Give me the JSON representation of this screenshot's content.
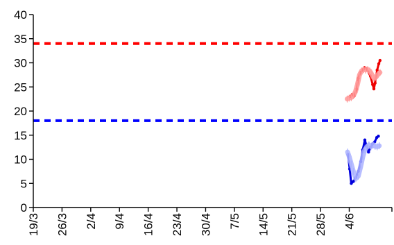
{
  "chart_data": {
    "type": "line",
    "title": "",
    "xlabel": "",
    "ylabel": "",
    "ylim": [
      0,
      40
    ],
    "yticks": [
      0,
      5,
      10,
      15,
      20,
      25,
      30,
      35,
      40
    ],
    "x_tick_labels": [
      "19/3",
      "26/3",
      "2/4",
      "9/4",
      "16/4",
      "23/4",
      "30/4",
      "7/5",
      "14/5",
      "21/5",
      "28/5",
      "4/6"
    ],
    "x_axis_days": {
      "start_label": "19/3",
      "end_label_value": 84
    },
    "grid": false,
    "legend": "none",
    "reference_lines": [
      {
        "value": 34,
        "color": "#ff0000",
        "style": "dashed"
      },
      {
        "value": 18,
        "color": "#0000ff",
        "style": "dashed"
      }
    ],
    "series": [
      {
        "color": "#ee0000",
        "style": "line",
        "points": [
          [
            77.2,
            23.0
          ],
          [
            77.7,
            23.4
          ],
          [
            78.2,
            23.1
          ],
          [
            78.8,
            24.5
          ],
          [
            79.2,
            26.8
          ],
          [
            79.7,
            28.0
          ],
          [
            80.4,
            28.6
          ],
          [
            80.7,
            29.0
          ],
          [
            81.2,
            28.8
          ],
          [
            82.2,
            27.2
          ],
          [
            82.7,
            25.5
          ],
          [
            83.0,
            24.6
          ],
          [
            83.3,
            25.8
          ],
          [
            83.8,
            28.5
          ],
          [
            84.2,
            29.8
          ],
          [
            84.5,
            30.5
          ]
        ]
      },
      {
        "color": "#ff9999",
        "style": "band",
        "points": [
          [
            76.5,
            22.5
          ],
          [
            77.0,
            22.7
          ],
          [
            77.5,
            22.8
          ],
          [
            78.0,
            23.2
          ],
          [
            78.5,
            24.0
          ],
          [
            79.0,
            25.5
          ],
          [
            79.5,
            27.5
          ],
          [
            80.0,
            28.3
          ],
          [
            80.5,
            28.6
          ],
          [
            81.0,
            28.5
          ],
          [
            81.5,
            28.6
          ],
          [
            82.0,
            28.3
          ],
          [
            82.5,
            27.6
          ],
          [
            83.0,
            26.8
          ],
          [
            83.5,
            27.0
          ],
          [
            84.0,
            27.6
          ],
          [
            84.5,
            28.0
          ]
        ]
      },
      {
        "color": "#0000dd",
        "style": "line",
        "points": [
          [
            76.7,
            11.0
          ],
          [
            77.1,
            8.0
          ],
          [
            77.5,
            5.0
          ],
          [
            78.0,
            5.4
          ],
          [
            78.6,
            6.2
          ],
          [
            79.2,
            7.5
          ],
          [
            79.8,
            9.5
          ],
          [
            80.3,
            12.0
          ],
          [
            80.8,
            14.0
          ],
          [
            81.2,
            12.8
          ],
          [
            81.7,
            11.5
          ],
          [
            82.2,
            12.5
          ],
          [
            82.7,
            13.2
          ],
          [
            83.2,
            13.6
          ],
          [
            83.7,
            14.5
          ],
          [
            84.1,
            14.8
          ]
        ]
      },
      {
        "color": "#aab2ff",
        "style": "band",
        "points": [
          [
            76.6,
            11.5
          ],
          [
            77.0,
            10.5
          ],
          [
            77.5,
            9.0
          ],
          [
            78.0,
            7.5
          ],
          [
            78.6,
            6.0
          ],
          [
            79.2,
            6.5
          ],
          [
            79.8,
            8.5
          ],
          [
            80.3,
            10.5
          ],
          [
            80.8,
            12.0
          ],
          [
            81.3,
            12.5
          ],
          [
            81.8,
            13.0
          ],
          [
            82.3,
            12.6
          ],
          [
            82.8,
            13.0
          ],
          [
            83.3,
            12.7
          ],
          [
            83.8,
            12.6
          ],
          [
            84.3,
            12.8
          ]
        ]
      }
    ]
  }
}
